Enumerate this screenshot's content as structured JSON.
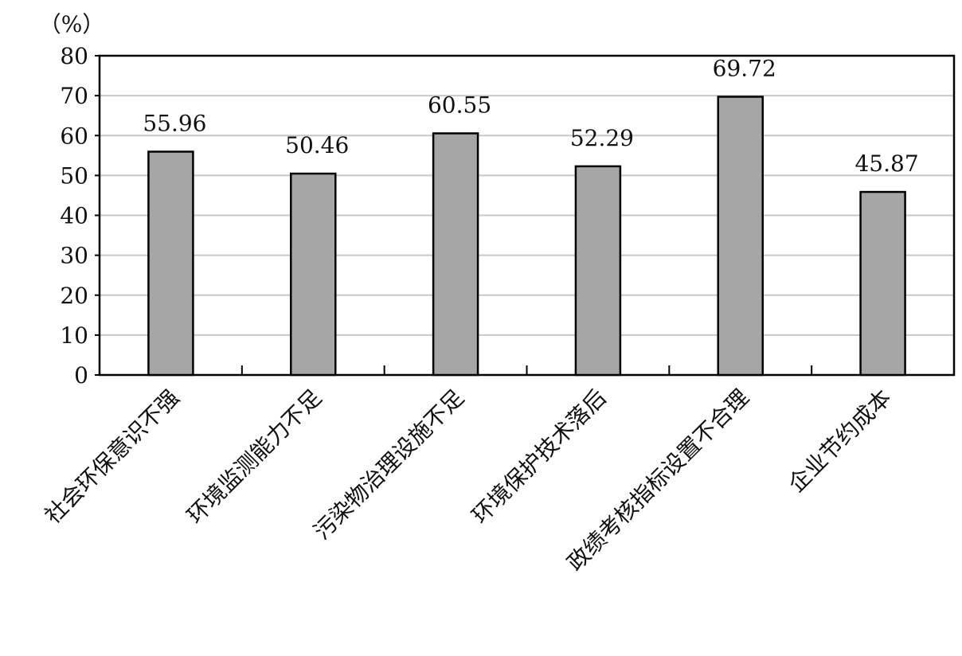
{
  "chart_data": {
    "type": "bar",
    "y_axis_label": "（%）",
    "categories": [
      "社会环保意识不强",
      "环境监测能力不足",
      "污染物治理设施不足",
      "环境保护技术落后",
      "政绩考核指标设置不合理",
      "企业节约成本"
    ],
    "values": [
      55.96,
      50.46,
      60.55,
      52.29,
      69.72,
      45.87
    ],
    "color": "#a6a6a6",
    "ylim": [
      0,
      80
    ],
    "yticks": [
      0,
      10,
      20,
      30,
      40,
      50,
      60,
      70,
      80
    ],
    "grid": true
  }
}
